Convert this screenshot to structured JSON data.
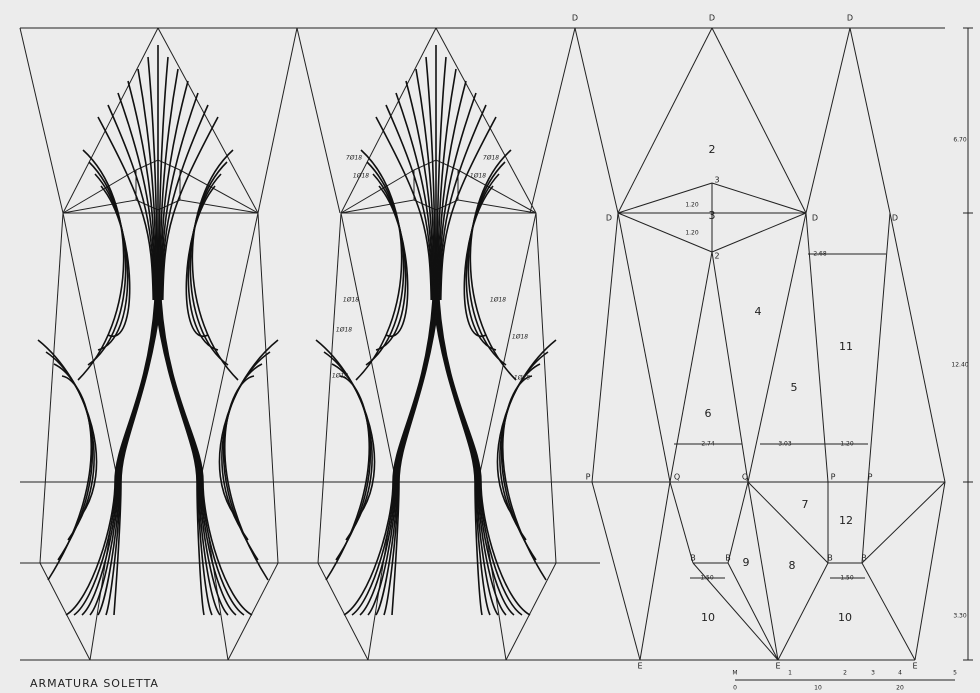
{
  "title": "ARMATURA SOLETTA",
  "points": [
    "D",
    "D",
    "D",
    "D",
    "D",
    "D",
    "3",
    "2",
    "P",
    "Q",
    "Q",
    "P",
    "P",
    "B",
    "B",
    "B",
    "B",
    "E",
    "E",
    "E"
  ],
  "regions": [
    "2",
    "3",
    "4",
    "5",
    "6",
    "7",
    "8",
    "9",
    "10",
    "10",
    "11",
    "12"
  ],
  "dimensions": [
    "1.20",
    "1.20",
    "2.68",
    "2.74",
    "3.03",
    "1.20",
    "1.50",
    "1.50",
    "6.70",
    "12.40",
    "3.30"
  ],
  "rebar": [
    "7Ø18",
    "7Ø18",
    "1Ø18",
    "1Ø18",
    "1Ø18",
    "1Ø18",
    "1Ø18",
    "1Ø18",
    "1Ø18",
    "1Ø18"
  ],
  "scale_top": [
    "M",
    "1",
    "2",
    "3",
    "4",
    "5"
  ],
  "scale_bottom": [
    "0",
    "10",
    "20"
  ]
}
